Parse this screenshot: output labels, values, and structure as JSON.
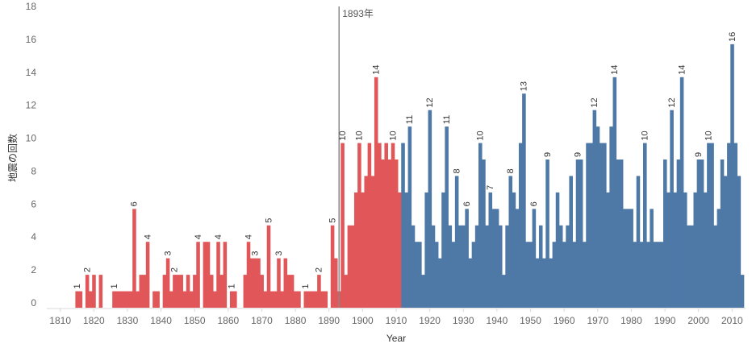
{
  "chart_data": {
    "type": "bar",
    "xlabel": "Year",
    "ylabel": "地震の回数",
    "xlim": [
      1806,
      2014
    ],
    "ylim": [
      0,
      18
    ],
    "x_ticks": [
      1810,
      1820,
      1830,
      1840,
      1850,
      1860,
      1870,
      1880,
      1890,
      1900,
      1910,
      1920,
      1930,
      1940,
      1950,
      1960,
      1970,
      1980,
      1990,
      2000,
      2010
    ],
    "y_ticks": [
      0,
      2,
      4,
      6,
      8,
      10,
      12,
      14,
      16,
      18
    ],
    "grid": false,
    "reference_line": {
      "x": 1893,
      "label": "1893年"
    },
    "colors": {
      "before": "#e15759",
      "after": "#4e79a7",
      "reference_line": "#888888",
      "axis": "#d9d9d9"
    },
    "series": [
      {
        "name": "",
        "color": "#e15759",
        "points": [
          [
            1815,
            1
          ],
          [
            1816,
            1
          ],
          [
            1818,
            2
          ],
          [
            1819,
            1
          ],
          [
            1820,
            2
          ],
          [
            1822,
            2
          ],
          [
            1826,
            1
          ],
          [
            1827,
            1
          ],
          [
            1828,
            1
          ],
          [
            1829,
            1
          ],
          [
            1830,
            1
          ],
          [
            1831,
            1
          ],
          [
            1832,
            6
          ],
          [
            1833,
            1
          ],
          [
            1834,
            2
          ],
          [
            1835,
            2
          ],
          [
            1836,
            4
          ],
          [
            1838,
            1
          ],
          [
            1839,
            1
          ],
          [
            1841,
            2
          ],
          [
            1842,
            3
          ],
          [
            1843,
            1
          ],
          [
            1844,
            2
          ],
          [
            1845,
            2
          ],
          [
            1846,
            2
          ],
          [
            1847,
            1
          ],
          [
            1848,
            2
          ],
          [
            1849,
            1
          ],
          [
            1850,
            2
          ],
          [
            1851,
            4
          ],
          [
            1853,
            4
          ],
          [
            1854,
            4
          ],
          [
            1855,
            2
          ],
          [
            1856,
            1
          ],
          [
            1857,
            4
          ],
          [
            1858,
            2
          ],
          [
            1859,
            4
          ],
          [
            1861,
            1
          ],
          [
            1862,
            1
          ],
          [
            1865,
            2
          ],
          [
            1866,
            4
          ],
          [
            1867,
            3
          ],
          [
            1868,
            3
          ],
          [
            1869,
            3
          ],
          [
            1870,
            2
          ],
          [
            1871,
            1
          ],
          [
            1872,
            5
          ],
          [
            1873,
            1
          ],
          [
            1874,
            1
          ],
          [
            1875,
            3
          ],
          [
            1876,
            1
          ],
          [
            1877,
            3
          ],
          [
            1878,
            2
          ],
          [
            1879,
            2
          ],
          [
            1880,
            1
          ],
          [
            1881,
            1
          ],
          [
            1883,
            1
          ],
          [
            1884,
            1
          ],
          [
            1885,
            1
          ],
          [
            1886,
            1
          ],
          [
            1887,
            2
          ],
          [
            1888,
            1
          ],
          [
            1889,
            1
          ],
          [
            1891,
            5
          ],
          [
            1892,
            3
          ],
          [
            1893,
            1
          ],
          [
            1894,
            10
          ],
          [
            1895,
            2
          ],
          [
            1896,
            5
          ],
          [
            1897,
            5
          ],
          [
            1898,
            7
          ],
          [
            1899,
            10
          ],
          [
            1900,
            7
          ],
          [
            1901,
            8
          ],
          [
            1902,
            10
          ],
          [
            1903,
            8
          ],
          [
            1904,
            14
          ],
          [
            1905,
            10
          ],
          [
            1906,
            9
          ],
          [
            1907,
            10
          ],
          [
            1908,
            9
          ],
          [
            1909,
            10
          ],
          [
            1910,
            9
          ],
          [
            1911,
            7
          ]
        ],
        "labels": [
          [
            1815,
            1
          ],
          [
            1818,
            2
          ],
          [
            1826,
            1
          ],
          [
            1832,
            6
          ],
          [
            1836,
            4
          ],
          [
            1842,
            3
          ],
          [
            1844,
            2
          ],
          [
            1851,
            4
          ],
          [
            1857,
            4
          ],
          [
            1861,
            1
          ],
          [
            1866,
            4
          ],
          [
            1868,
            3
          ],
          [
            1872,
            5
          ],
          [
            1875,
            3
          ],
          [
            1883,
            1
          ],
          [
            1887,
            2
          ],
          [
            1891,
            5
          ],
          [
            1894,
            10
          ],
          [
            1899,
            10
          ],
          [
            1904,
            14
          ],
          [
            1909,
            10
          ]
        ]
      },
      {
        "name": "",
        "color": "#4e79a7",
        "points": [
          [
            1912,
            10
          ],
          [
            1913,
            7
          ],
          [
            1914,
            11
          ],
          [
            1915,
            5
          ],
          [
            1916,
            4
          ],
          [
            1917,
            4
          ],
          [
            1918,
            2
          ],
          [
            1919,
            7
          ],
          [
            1920,
            12
          ],
          [
            1921,
            5
          ],
          [
            1922,
            4
          ],
          [
            1923,
            3
          ],
          [
            1924,
            7
          ],
          [
            1925,
            11
          ],
          [
            1926,
            5
          ],
          [
            1927,
            4
          ],
          [
            1928,
            8
          ],
          [
            1929,
            5
          ],
          [
            1930,
            5
          ],
          [
            1931,
            6
          ],
          [
            1932,
            3
          ],
          [
            1933,
            4
          ],
          [
            1934,
            5
          ],
          [
            1935,
            10
          ],
          [
            1936,
            9
          ],
          [
            1937,
            5
          ],
          [
            1938,
            7
          ],
          [
            1939,
            6
          ],
          [
            1940,
            6
          ],
          [
            1941,
            5
          ],
          [
            1942,
            2
          ],
          [
            1943,
            5
          ],
          [
            1944,
            8
          ],
          [
            1945,
            7
          ],
          [
            1946,
            6
          ],
          [
            1947,
            10
          ],
          [
            1948,
            13
          ],
          [
            1949,
            4
          ],
          [
            1950,
            4
          ],
          [
            1951,
            6
          ],
          [
            1952,
            3
          ],
          [
            1953,
            5
          ],
          [
            1954,
            3
          ],
          [
            1955,
            9
          ],
          [
            1956,
            3
          ],
          [
            1957,
            4
          ],
          [
            1958,
            7
          ],
          [
            1959,
            5
          ],
          [
            1960,
            4
          ],
          [
            1961,
            5
          ],
          [
            1962,
            8
          ],
          [
            1963,
            4
          ],
          [
            1964,
            9
          ],
          [
            1965,
            9
          ],
          [
            1966,
            4
          ],
          [
            1967,
            10
          ],
          [
            1968,
            10
          ],
          [
            1969,
            12
          ],
          [
            1970,
            11
          ],
          [
            1971,
            10
          ],
          [
            1972,
            10
          ],
          [
            1973,
            7
          ],
          [
            1974,
            11
          ],
          [
            1975,
            14
          ],
          [
            1976,
            9
          ],
          [
            1977,
            9
          ],
          [
            1978,
            6
          ],
          [
            1979,
            6
          ],
          [
            1980,
            6
          ],
          [
            1981,
            4
          ],
          [
            1982,
            8
          ],
          [
            1983,
            4
          ],
          [
            1984,
            10
          ],
          [
            1985,
            4
          ],
          [
            1986,
            6
          ],
          [
            1987,
            4
          ],
          [
            1988,
            4
          ],
          [
            1989,
            4
          ],
          [
            1990,
            9
          ],
          [
            1991,
            7
          ],
          [
            1992,
            12
          ],
          [
            1993,
            7
          ],
          [
            1994,
            9
          ],
          [
            1995,
            14
          ],
          [
            1996,
            7
          ],
          [
            1997,
            5
          ],
          [
            1998,
            5
          ],
          [
            1999,
            7
          ],
          [
            2000,
            9
          ],
          [
            2001,
            9
          ],
          [
            2002,
            7
          ],
          [
            2003,
            10
          ],
          [
            2004,
            10
          ],
          [
            2005,
            5
          ],
          [
            2006,
            6
          ],
          [
            2007,
            9
          ],
          [
            2008,
            8
          ],
          [
            2009,
            10
          ],
          [
            2010,
            16
          ],
          [
            2011,
            10
          ],
          [
            2012,
            8
          ],
          [
            2013,
            2
          ]
        ],
        "labels": [
          [
            1914,
            11
          ],
          [
            1920,
            12
          ],
          [
            1925,
            11
          ],
          [
            1928,
            8
          ],
          [
            1931,
            6
          ],
          [
            1935,
            10
          ],
          [
            1938,
            7
          ],
          [
            1944,
            8
          ],
          [
            1948,
            13
          ],
          [
            1951,
            6
          ],
          [
            1955,
            9
          ],
          [
            1964,
            9
          ],
          [
            1969,
            12
          ],
          [
            1975,
            14
          ],
          [
            1984,
            10
          ],
          [
            1992,
            12
          ],
          [
            1995,
            14
          ],
          [
            2000,
            9
          ],
          [
            2003,
            10
          ],
          [
            2010,
            16
          ]
        ]
      }
    ]
  }
}
